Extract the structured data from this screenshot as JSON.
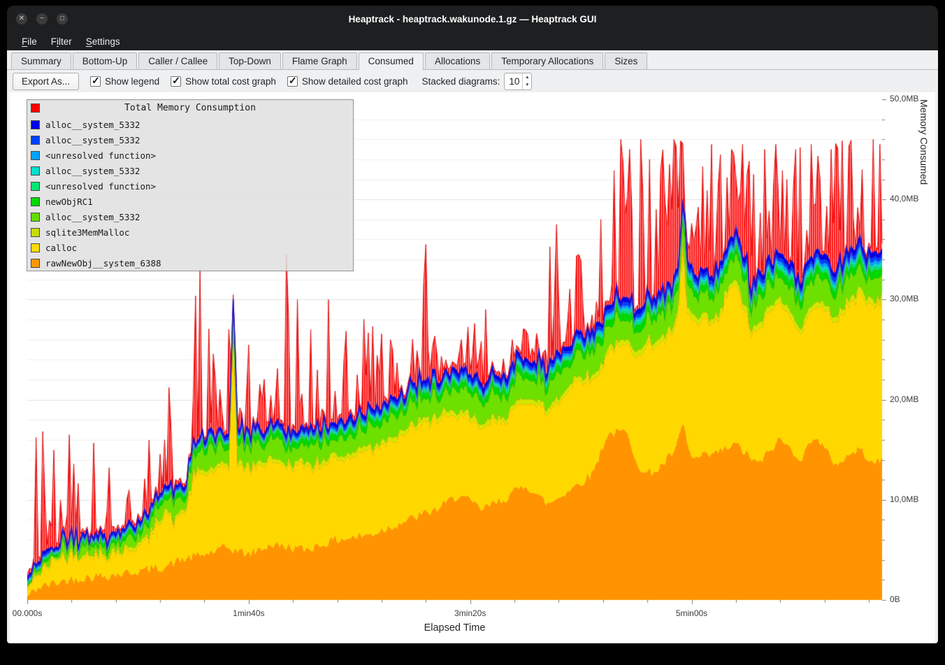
{
  "window": {
    "title": "Heaptrack - heaptrack.wakunode.1.gz — Heaptrack GUI"
  },
  "window_controls": {
    "close": "✕",
    "minimize": "−",
    "maximize": "□"
  },
  "menubar": {
    "items": [
      {
        "label": "File",
        "underline": 0
      },
      {
        "label": "Filter",
        "underline": 1
      },
      {
        "label": "Settings",
        "underline": 0
      }
    ]
  },
  "tabs": {
    "items": [
      "Summary",
      "Bottom-Up",
      "Caller / Callee",
      "Top-Down",
      "Flame Graph",
      "Consumed",
      "Allocations",
      "Temporary Allocations",
      "Sizes"
    ],
    "active": "Consumed"
  },
  "toolbar": {
    "export_button": "Export As...",
    "checkboxes": [
      {
        "label": "Show legend",
        "checked": true
      },
      {
        "label": "Show total cost graph",
        "checked": true
      },
      {
        "label": "Show detailed cost graph",
        "checked": true
      }
    ],
    "stacked_label": "Stacked diagrams:",
    "stacked_value": "10"
  },
  "chart_data": {
    "type": "area",
    "stacked": true,
    "seed": 42,
    "title": "Total Memory Consumption",
    "xlabel": "Elapsed Time",
    "ylabel": "Memory Consumed",
    "x_range": [
      0,
      386
    ],
    "y_range": [
      0,
      50
    ],
    "x_ticks": [
      {
        "t": 0,
        "label": "00.000s"
      },
      {
        "t": 100,
        "label": "1min40s"
      },
      {
        "t": 200,
        "label": "3min20s"
      },
      {
        "t": 300,
        "label": "5min00s"
      }
    ],
    "y_ticks": [
      {
        "v": 0,
        "label": "0B"
      },
      {
        "v": 10,
        "label": "10,0MB"
      },
      {
        "v": 20,
        "label": "20,0MB"
      },
      {
        "v": 30,
        "label": "30,0MB"
      },
      {
        "v": 40,
        "label": "40,0MB"
      },
      {
        "v": 50,
        "label": "50,0MB"
      }
    ],
    "legend": [
      {
        "color": "#ff0000",
        "label": "Total Memory Consumption",
        "is_title": true
      },
      {
        "color": "#0000e6",
        "label": "alloc__system_5332"
      },
      {
        "color": "#0040ff",
        "label": "alloc__system_5332"
      },
      {
        "color": "#00a2ff",
        "label": "<unresolved function>"
      },
      {
        "color": "#00e0cc",
        "label": "alloc__system_5332"
      },
      {
        "color": "#00e673",
        "label": "<unresolved function>"
      },
      {
        "color": "#00d800",
        "label": "newObjRC1"
      },
      {
        "color": "#64dc00",
        "label": "alloc__system_5332"
      },
      {
        "color": "#c8dc00",
        "label": "sqlite3MemMalloc"
      },
      {
        "color": "#ffdc00",
        "label": "calloc"
      },
      {
        "color": "#ff9800",
        "label": "rawNewObj__system_6388"
      }
    ],
    "series": [
      {
        "name": "rawNewObj__system_6388",
        "color": "#ff9400",
        "noise": 0.5,
        "keypoints": [
          [
            0,
            0.3
          ],
          [
            5,
            1.2
          ],
          [
            15,
            1.8
          ],
          [
            25,
            2.2
          ],
          [
            40,
            2.5
          ],
          [
            55,
            3.0
          ],
          [
            62,
            3.3
          ],
          [
            70,
            4.0
          ],
          [
            80,
            4.5
          ],
          [
            90,
            5.2
          ],
          [
            100,
            4.5
          ],
          [
            110,
            5.5
          ],
          [
            125,
            5.0
          ],
          [
            140,
            6.0
          ],
          [
            155,
            6.5
          ],
          [
            170,
            7.8
          ],
          [
            185,
            9.0
          ],
          [
            195,
            10.5
          ],
          [
            205,
            9.0
          ],
          [
            215,
            10.0
          ],
          [
            225,
            11.5
          ],
          [
            235,
            9.5
          ],
          [
            245,
            11.0
          ],
          [
            255,
            12.5
          ],
          [
            262,
            16.5
          ],
          [
            270,
            16.8
          ],
          [
            278,
            12.5
          ],
          [
            285,
            13.0
          ],
          [
            293,
            15.0
          ],
          [
            296,
            17.5
          ],
          [
            300,
            14.0
          ],
          [
            310,
            14.5
          ],
          [
            320,
            15.5
          ],
          [
            330,
            13.5
          ],
          [
            340,
            16.0
          ],
          [
            350,
            14.0
          ],
          [
            355,
            16.5
          ],
          [
            365,
            13.5
          ],
          [
            375,
            15.0
          ],
          [
            385,
            13.5
          ],
          [
            386,
            14.0
          ]
        ]
      },
      {
        "name": "calloc",
        "color": "#ffd800",
        "noise": 0.35,
        "spikes": [
          [
            93,
            13
          ],
          [
            296,
            5
          ]
        ],
        "keypoints": [
          [
            0,
            0.8
          ],
          [
            10,
            2.0
          ],
          [
            20,
            2.5
          ],
          [
            30,
            2.0
          ],
          [
            45,
            2.2
          ],
          [
            55,
            3.0
          ],
          [
            62,
            5.5
          ],
          [
            66,
            4.0
          ],
          [
            72,
            5.0
          ],
          [
            75,
            8.0
          ],
          [
            90,
            8.0
          ],
          [
            100,
            8.5
          ],
          [
            120,
            8.0
          ],
          [
            140,
            8.0
          ],
          [
            160,
            8.5
          ],
          [
            180,
            9.0
          ],
          [
            200,
            8.0
          ],
          [
            220,
            8.0
          ],
          [
            240,
            9.5
          ],
          [
            250,
            10.5
          ],
          [
            260,
            8.0
          ],
          [
            270,
            8.5
          ],
          [
            280,
            13.0
          ],
          [
            290,
            12.0
          ],
          [
            300,
            13.5
          ],
          [
            312,
            13.0
          ],
          [
            317,
            16.0
          ],
          [
            322,
            15.0
          ],
          [
            327,
            12.5
          ],
          [
            335,
            14.0
          ],
          [
            345,
            13.0
          ],
          [
            355,
            13.0
          ],
          [
            370,
            15.0
          ],
          [
            386,
            16.0
          ]
        ]
      },
      {
        "name": "sqlite3MemMalloc",
        "color": "#d4e600",
        "noise": 0.12,
        "keypoints": [
          [
            0,
            0.15
          ],
          [
            60,
            0.4
          ],
          [
            386,
            0.6
          ]
        ]
      },
      {
        "name": "alloc__system_5332",
        "color": "#6ee000",
        "noise": 0.7,
        "keypoints": [
          [
            0,
            0.4
          ],
          [
            70,
            1.2
          ],
          [
            80,
            1.8
          ],
          [
            150,
            1.8
          ],
          [
            240,
            2.2
          ],
          [
            386,
            2.2
          ]
        ]
      },
      {
        "name": "newObjRC1",
        "color": "#00d800",
        "noise": 0.12,
        "keypoints": [
          [
            0,
            0.2
          ],
          [
            75,
            0.6
          ],
          [
            386,
            0.8
          ]
        ]
      },
      {
        "name": "<unresolved function>",
        "color": "#00e673",
        "noise": 0.07,
        "keypoints": [
          [
            0,
            0.1
          ],
          [
            386,
            0.3
          ]
        ]
      },
      {
        "name": "alloc__system_5332",
        "color": "#00e0cc",
        "noise": 0.07,
        "keypoints": [
          [
            0,
            0.1
          ],
          [
            386,
            0.3
          ]
        ]
      },
      {
        "name": "<unresolved function>",
        "color": "#00a2ff",
        "noise": 0.07,
        "keypoints": [
          [
            0,
            0.1
          ],
          [
            386,
            0.3
          ]
        ]
      },
      {
        "name": "alloc__system_5332",
        "color": "#0040ff",
        "noise": 0.08,
        "keypoints": [
          [
            0,
            0.15
          ],
          [
            386,
            0.4
          ]
        ]
      },
      {
        "name": "alloc__system_5332",
        "color": "#0000e6",
        "noise": 0.1,
        "keypoints": [
          [
            0,
            0.2
          ],
          [
            386,
            0.5
          ]
        ]
      }
    ],
    "total": {
      "name": "Total Memory Consumption",
      "color": "#ff0000",
      "margin": 0.3,
      "noise": 0.25,
      "prob_keys": [
        [
          0,
          0.3
        ],
        [
          70,
          0.32
        ],
        [
          140,
          0.38
        ],
        [
          260,
          0.45
        ],
        [
          285,
          0.5
        ],
        [
          289,
          0.85
        ],
        [
          301,
          0.85
        ],
        [
          304,
          0.5
        ],
        [
          386,
          0.55
        ]
      ],
      "ceil_keys": [
        [
          0,
          17
        ],
        [
          20,
          17
        ],
        [
          55,
          18
        ],
        [
          60,
          20
        ],
        [
          70,
          26
        ],
        [
          75,
          33
        ],
        [
          85,
          30
        ],
        [
          100,
          28
        ],
        [
          110,
          34
        ],
        [
          125,
          30
        ],
        [
          140,
          30
        ],
        [
          160,
          27
        ],
        [
          170,
          27
        ],
        [
          178,
          35
        ],
        [
          185,
          26
        ],
        [
          200,
          29
        ],
        [
          215,
          26
        ],
        [
          230,
          28
        ],
        [
          236,
          38
        ],
        [
          245,
          35
        ],
        [
          252,
          36
        ],
        [
          258,
          38
        ],
        [
          264,
          46
        ],
        [
          386,
          46
        ]
      ],
      "major_spikes": [
        [
          8,
          10
        ],
        [
          19,
          16.5
        ],
        [
          30,
          12
        ],
        [
          46,
          11
        ],
        [
          62,
          16
        ],
        [
          75,
          20.5
        ],
        [
          78,
          33
        ],
        [
          93,
          29.5
        ],
        [
          100,
          20
        ],
        [
          117,
          34.5
        ],
        [
          122,
          30
        ],
        [
          128,
          27
        ],
        [
          136,
          30
        ],
        [
          144,
          26
        ],
        [
          153,
          21
        ],
        [
          164,
          26
        ],
        [
          180,
          35.5
        ],
        [
          196,
          26
        ],
        [
          207,
          29
        ],
        [
          219,
          26
        ],
        [
          239,
          37.5
        ],
        [
          249,
          34.5
        ],
        [
          259,
          38
        ],
        [
          268,
          46
        ],
        [
          272,
          45
        ],
        [
          277,
          46
        ],
        [
          281,
          44
        ],
        [
          284,
          39
        ],
        [
          292,
          46
        ],
        [
          296,
          45
        ],
        [
          305,
          43
        ],
        [
          309,
          45.5
        ],
        [
          318,
          45
        ],
        [
          323,
          45.5
        ],
        [
          328,
          42.5
        ],
        [
          333,
          45
        ],
        [
          338,
          45.5
        ],
        [
          343,
          42
        ],
        [
          347,
          45
        ],
        [
          354,
          45.5
        ],
        [
          358,
          42
        ],
        [
          363,
          45
        ],
        [
          368,
          44
        ],
        [
          372,
          45.5
        ],
        [
          377,
          43
        ],
        [
          382,
          46
        ],
        [
          385,
          45.5
        ]
      ]
    }
  }
}
